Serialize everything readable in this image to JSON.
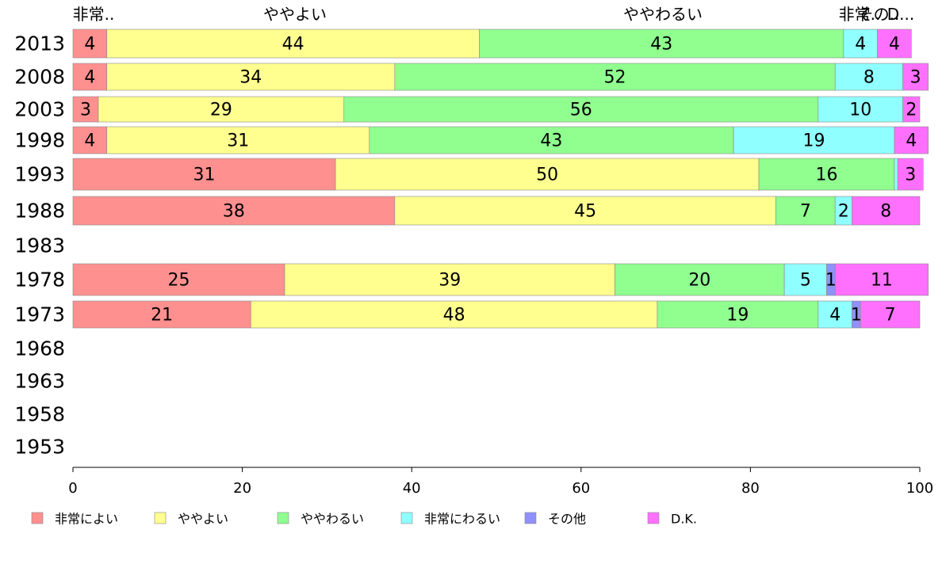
{
  "chart_data": {
    "type": "bar",
    "orientation": "horizontal",
    "stacked": true,
    "categories": [
      "2013",
      "2008",
      "2003",
      "1998",
      "1993",
      "1988",
      "1983",
      "1978",
      "1973",
      "1968",
      "1963",
      "1958",
      "1953"
    ],
    "xlim": [
      0,
      100
    ],
    "xticks": [
      0,
      20,
      40,
      60,
      80,
      100
    ],
    "legend_position": "bottom",
    "series": [
      {
        "name": "非常によい",
        "color": "#ff9090",
        "values": [
          4,
          4,
          3,
          4,
          31,
          38,
          null,
          25,
          21,
          null,
          null,
          null,
          null
        ]
      },
      {
        "name": "ややよい",
        "color": "#ffff90",
        "values": [
          44,
          34,
          29,
          31,
          50,
          45,
          null,
          39,
          48,
          null,
          null,
          null,
          null
        ]
      },
      {
        "name": "ややわるい",
        "color": "#90ff90",
        "values": [
          43,
          52,
          56,
          43,
          16,
          7,
          null,
          20,
          19,
          null,
          null,
          null,
          null
        ]
      },
      {
        "name": "非常にわるい",
        "color": "#90ffff",
        "values": [
          4,
          8,
          10,
          19,
          0.4,
          2,
          null,
          5,
          4,
          null,
          null,
          null,
          null
        ]
      },
      {
        "name": "その他",
        "color": "#9090ff",
        "values": [
          0,
          0,
          0,
          0,
          0,
          0,
          null,
          1,
          1,
          null,
          null,
          null,
          null
        ]
      },
      {
        "name": "D.K.",
        "color": "#ff70ff",
        "values": [
          4,
          3,
          2,
          4,
          3,
          8,
          null,
          11,
          7,
          null,
          null,
          null,
          null
        ]
      }
    ],
    "top_labels": [
      "非常..",
      "ややよい",
      "ややわるい",
      "非常..",
      "その..",
      "D..."
    ]
  }
}
